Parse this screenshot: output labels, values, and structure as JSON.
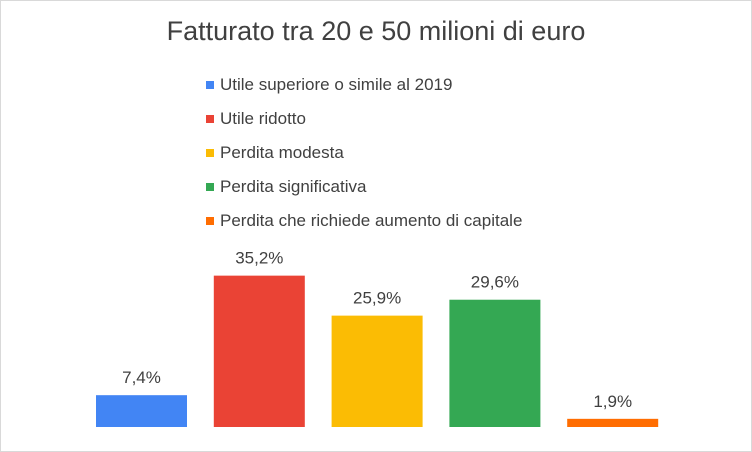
{
  "chart_data": {
    "type": "bar",
    "title": "Fatturato tra 20 e 50 milioni di euro",
    "categories": [
      "Utile superiore o simile al 2019",
      "Utile ridotto",
      "Perdita modesta",
      "Perdita significativa",
      "Perdita che richiede aumento di capitale"
    ],
    "values": [
      7.4,
      35.2,
      25.9,
      29.6,
      1.9
    ],
    "data_labels": [
      "7,4%",
      "35,2%",
      "25,9%",
      "29,6%",
      "1,9%"
    ],
    "colors": [
      "#4285F4",
      "#EA4335",
      "#FBBC04",
      "#34A853",
      "#FF6D01"
    ],
    "legend_position": "top",
    "grid": false,
    "axes_visible": false
  }
}
